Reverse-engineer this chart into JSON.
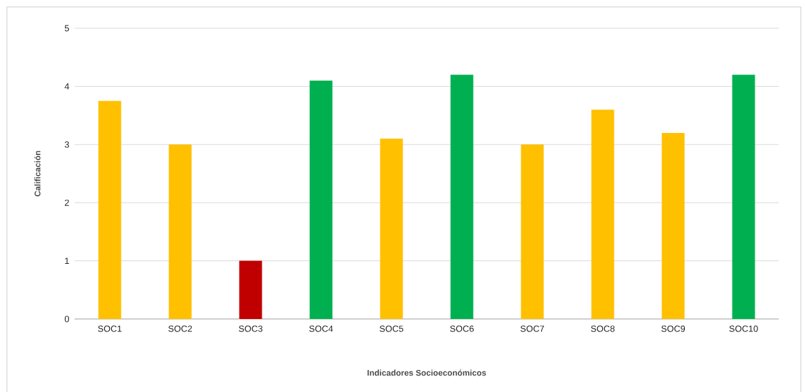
{
  "chart_data": {
    "type": "bar",
    "xlabel": "Indicadores Socioeconómicos",
    "ylabel": "Calificación",
    "categories": [
      "SOC1",
      "SOC2",
      "SOC3",
      "SOC4",
      "SOC5",
      "SOC6",
      "SOC7",
      "SOC8",
      "SOC9",
      "SOC10"
    ],
    "values": [
      3.75,
      3.0,
      1.0,
      4.1,
      3.1,
      4.2,
      3.0,
      3.6,
      3.2,
      4.2
    ],
    "colors": [
      "#ffc000",
      "#ffc000",
      "#c00000",
      "#00b050",
      "#ffc000",
      "#00b050",
      "#ffc000",
      "#ffc000",
      "#ffc000",
      "#00b050"
    ],
    "ylim": [
      0,
      5
    ],
    "yticks": [
      0,
      1,
      2,
      3,
      4,
      5
    ],
    "grid": "y"
  }
}
